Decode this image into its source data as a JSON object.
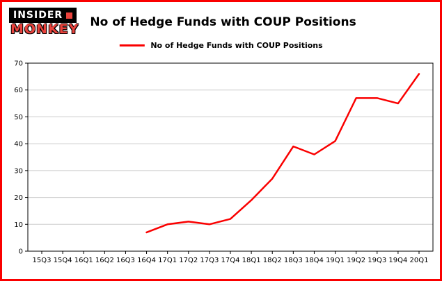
{
  "brand": {
    "line1": "INSIDER",
    "line2": "MONKEY"
  },
  "header": {
    "title": "No of Hedge Funds with COUP Positions"
  },
  "legend": {
    "label": "No of Hedge Funds with COUP Positions",
    "color": "#fa0000"
  },
  "chart_data": {
    "type": "line",
    "title": "No of Hedge Funds with COUP Positions",
    "categories": [
      "15Q3",
      "15Q4",
      "16Q1",
      "16Q2",
      "16Q3",
      "16Q4",
      "17Q1",
      "17Q2",
      "17Q3",
      "17Q4",
      "18Q1",
      "18Q2",
      "18Q3",
      "18Q4",
      "19Q1",
      "19Q2",
      "19Q3",
      "19Q4",
      "20Q1"
    ],
    "series": [
      {
        "name": "No of Hedge Funds with COUP Positions",
        "color": "#fa0000",
        "values": [
          null,
          null,
          null,
          null,
          null,
          7,
          10,
          11,
          10,
          12,
          19,
          27,
          39,
          36,
          41,
          57,
          57,
          55,
          66
        ]
      }
    ],
    "xlabel": "",
    "ylabel": "",
    "yticks": [
      0,
      10,
      20,
      30,
      40,
      50,
      60,
      70
    ],
    "ylim": [
      0,
      70
    ],
    "grid": true,
    "grid_color": "#cccccc",
    "legend_position": "top-center"
  }
}
